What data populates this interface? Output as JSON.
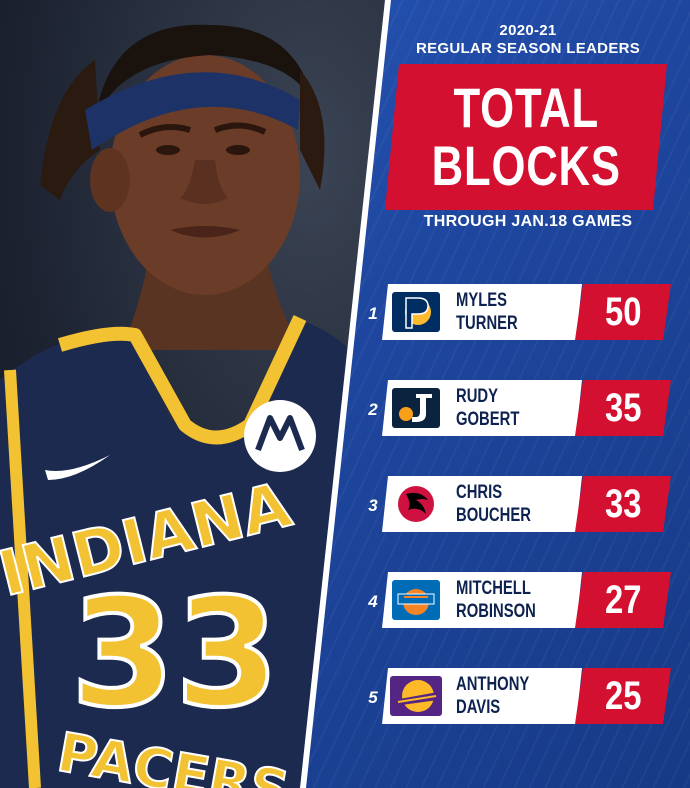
{
  "header": {
    "season": "2020-21",
    "subtitle": "REGULAR SEASON LEADERS",
    "title_line1": "TOTAL",
    "title_line2": "BLOCKS",
    "through": "THROUGH JAN.18 GAMES"
  },
  "jersey": {
    "team_text": "INDIANA",
    "number": "33",
    "bottom_text": "PACERS"
  },
  "colors": {
    "panel_blue": "#1e47a0",
    "accent_red": "#d3102f",
    "jersey_navy": "#1b2a4e",
    "jersey_gold": "#f2c232"
  },
  "leaders": [
    {
      "rank": "1",
      "first": "MYLES",
      "last": "TURNER",
      "value": "50",
      "team_logo": "pacers-logo-icon"
    },
    {
      "rank": "2",
      "first": "RUDY",
      "last": "GOBERT",
      "value": "35",
      "team_logo": "jazz-logo-icon"
    },
    {
      "rank": "3",
      "first": "CHRIS",
      "last": "BOUCHER",
      "value": "33",
      "team_logo": "raptors-logo-icon"
    },
    {
      "rank": "4",
      "first": "MITCHELL",
      "last": "ROBINSON",
      "value": "27",
      "team_logo": "knicks-logo-icon"
    },
    {
      "rank": "5",
      "first": "ANTHONY",
      "last": "DAVIS",
      "value": "25",
      "team_logo": "lakers-logo-icon"
    }
  ]
}
